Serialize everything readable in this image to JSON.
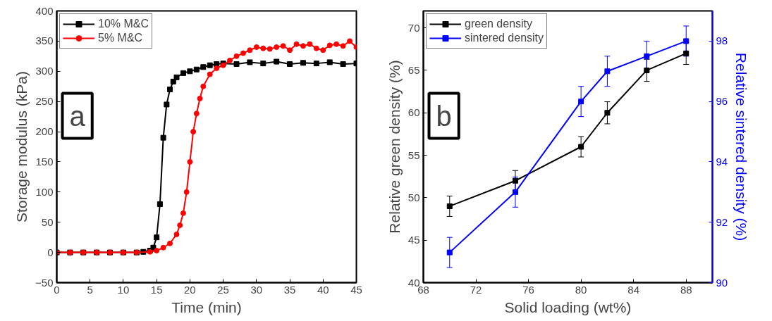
{
  "chart_data": [
    {
      "type": "line",
      "xlabel": "Time (min)",
      "ylabel": "Storage modulus (kPa)",
      "xlim": [
        0,
        45
      ],
      "ylim": [
        -50,
        400
      ],
      "xticks": [
        0,
        5,
        10,
        15,
        20,
        25,
        30,
        35,
        40,
        45
      ],
      "yticks": [
        -50,
        0,
        50,
        100,
        150,
        200,
        250,
        300,
        350,
        400
      ],
      "grid": false,
      "legend": "top left",
      "annotations": [
        "a"
      ],
      "series": [
        {
          "name": "10% M&C",
          "color": "#000000",
          "marker": "square",
          "x": [
            0,
            2,
            4,
            6,
            8,
            10,
            12,
            13,
            14,
            14.5,
            15,
            15.5,
            16,
            16.5,
            17,
            17.5,
            18,
            19,
            20,
            21,
            22,
            23,
            24,
            25,
            27,
            29,
            31,
            33,
            35,
            37,
            39,
            41,
            43,
            45
          ],
          "values": [
            0,
            0,
            0,
            0,
            0,
            0,
            0,
            1,
            3,
            8,
            25,
            80,
            190,
            245,
            270,
            283,
            290,
            297,
            300,
            303,
            307,
            310,
            312,
            313,
            312,
            315,
            313,
            316,
            312,
            314,
            313,
            315,
            312,
            313
          ]
        },
        {
          "name": "5% M&C",
          "color": "#ff0000",
          "marker": "circle",
          "x": [
            0,
            2,
            4,
            6,
            8,
            10,
            12,
            14,
            15,
            16,
            17,
            18,
            18.5,
            19,
            19.5,
            20,
            20.5,
            21,
            21.5,
            22,
            23,
            24,
            25,
            26,
            27,
            28,
            29,
            30,
            31,
            32,
            33,
            34,
            35,
            36,
            37,
            38,
            39,
            40,
            41,
            42,
            43,
            44,
            45
          ],
          "values": [
            0,
            0,
            0,
            0,
            0,
            0,
            0,
            1,
            3,
            8,
            15,
            30,
            45,
            65,
            100,
            150,
            200,
            230,
            255,
            275,
            295,
            305,
            310,
            318,
            325,
            330,
            335,
            340,
            338,
            337,
            340,
            342,
            335,
            345,
            342,
            345,
            338,
            335,
            343,
            345,
            342,
            350,
            340
          ]
        }
      ]
    },
    {
      "type": "line",
      "xlabel": "Solid loading (wt%)",
      "ylabel": "Relative green density (%)",
      "y2label": "Relative sintered density (%)",
      "xlim": [
        68,
        90
      ],
      "ylim": [
        40,
        72
      ],
      "y2lim": [
        90,
        99
      ],
      "xticks": [
        68,
        72,
        76,
        80,
        84,
        88
      ],
      "yticks": [
        40,
        45,
        50,
        55,
        60,
        65,
        70
      ],
      "y2ticks": [
        90,
        92,
        94,
        96,
        98
      ],
      "grid": false,
      "legend": "top left",
      "marker": "square",
      "annotations": [
        "b"
      ],
      "x": [
        70,
        75,
        80,
        82,
        85,
        88
      ],
      "series": [
        {
          "name": "green density",
          "color": "#000000",
          "values": [
            49,
            52,
            56,
            60,
            65,
            67
          ],
          "errors": [
            1.2,
            1.2,
            1.2,
            1.3,
            1.3,
            1.3
          ]
        },
        {
          "name": "sintered density",
          "color": "#0000ff",
          "axis": "y2",
          "values": [
            91,
            93,
            96,
            97,
            97.5,
            98
          ],
          "errors": [
            0.5,
            0.5,
            0.5,
            0.5,
            0.5,
            0.5
          ]
        }
      ]
    }
  ]
}
